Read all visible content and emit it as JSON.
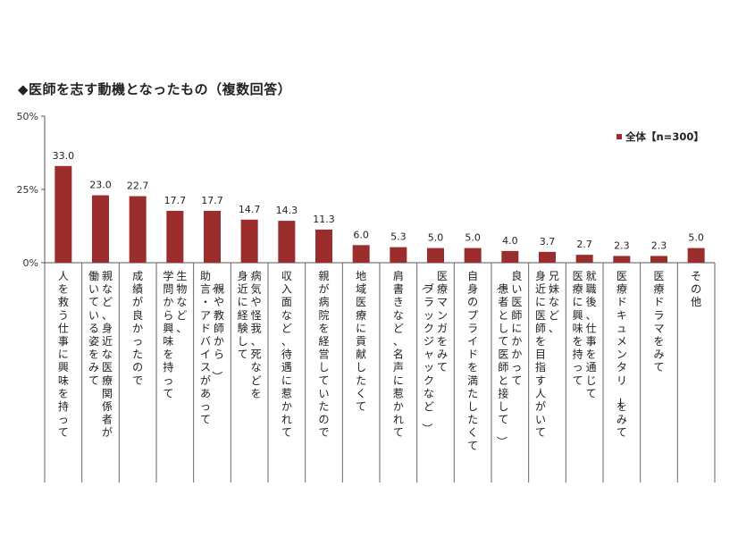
{
  "title": "◆医師を志す動機となったもの（複数回答）",
  "chart_data": {
    "type": "bar",
    "title": "◆医師を志す動機となったもの（複数回答）",
    "ylim": [
      0,
      50
    ],
    "yticks": [
      "0%",
      "25%",
      "50%"
    ],
    "grid": false,
    "legend_position": "top-right",
    "series": [
      {
        "name": "全体【n=300】",
        "color": "#9b2d2d",
        "values": [
          33.0,
          23.0,
          22.7,
          17.7,
          17.7,
          14.7,
          14.3,
          11.3,
          6.0,
          5.3,
          5.0,
          5.0,
          4.0,
          3.7,
          2.7,
          2.3,
          2.3,
          5.0
        ]
      }
    ],
    "value_labels": [
      "33.0",
      "23.0",
      "22.7",
      "17.7",
      "17.7",
      "14.7",
      "14.3",
      "11.3",
      "6.0",
      "5.3",
      "5.0",
      "5.0",
      "4.0",
      "3.7",
      "2.7",
      "2.3",
      "2.3",
      "5.0"
    ],
    "categories": [
      [
        "人を救う仕事に興味を持って"
      ],
      [
        "親など、身近な医療関係者が",
        "働いている姿をみて"
      ],
      [
        "成績が良かったので"
      ],
      [
        "生物など、",
        "学問から興味を持って"
      ],
      [
        "（親や教師から）",
        "助言・アドバイスがあって"
      ],
      [
        "病気や怪我、死などを",
        "身近に経験して"
      ],
      [
        "収入面など、待遇に惹かれて"
      ],
      [
        "親が病院を経営していたので"
      ],
      [
        "地域医療に貢献したくて"
      ],
      [
        "肩書きなど、名声に惹かれて"
      ],
      [
        "医療マンガをみて",
        "（ブラックジャックなど）"
      ],
      [
        "自身のプライドを満たしたくて"
      ],
      [
        "良い医師にかかって",
        "（患者として医師と接して）"
      ],
      [
        "兄妹など、",
        "身近に医師を目指す人がいて"
      ],
      [
        "就職後、仕事を通じて",
        "医療に興味を持って"
      ],
      [
        "医療ドキュメンタリーをみて"
      ],
      [
        "医療ドラマをみて"
      ],
      [
        "その他"
      ]
    ]
  }
}
